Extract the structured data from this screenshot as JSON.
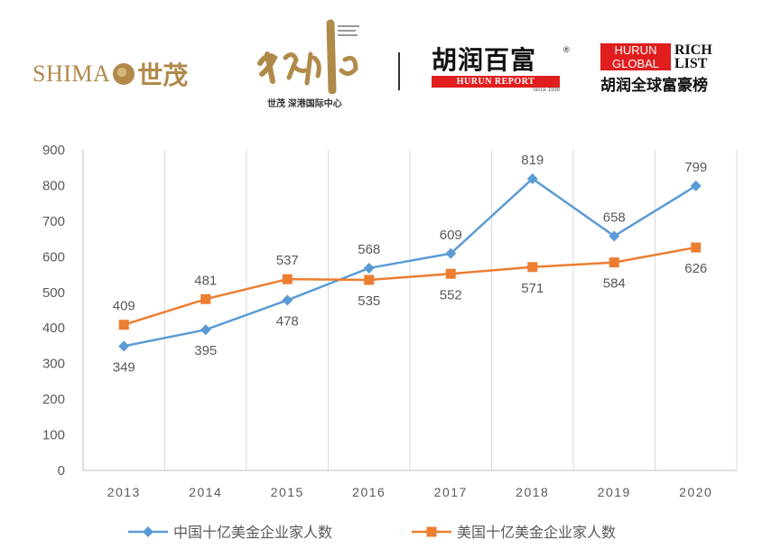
{
  "logos": {
    "shimao_en": "SHIMA",
    "shimao_zh": "世茂",
    "sz_caption": "世茂 深港国际中心",
    "hurun_report_zh": "胡润百富",
    "hurun_report_en": "HURUN REPORT",
    "hurun_report_since": "Since 1999",
    "hurun_global_line1": "HURUN",
    "hurun_global_line2": "GLOBAL",
    "hurun_rich": "RICH",
    "hurun_list": "LIST",
    "hurun_global_zh": "胡润全球富豪榜"
  },
  "colors": {
    "china": "#5b9bd5",
    "usa": "#ed7d31",
    "grid": "#d9d9d9",
    "axis": "#bfbfbf",
    "brand_gold": "#b08a4a",
    "brand_red": "#e01e1e"
  },
  "chart_data": {
    "type": "line",
    "title": "",
    "xlabel": "",
    "ylabel": "",
    "categories": [
      "2013",
      "2014",
      "2015",
      "2016",
      "2017",
      "2018",
      "2019",
      "2020"
    ],
    "series": [
      {
        "name": "中国十亿美金企业家人数",
        "values": [
          349,
          395,
          478,
          568,
          609,
          819,
          658,
          799
        ],
        "marker": "diamond",
        "label_pos": [
          "below",
          "below",
          "below",
          "above",
          "above",
          "above",
          "above",
          "above"
        ]
      },
      {
        "name": "美国十亿美金企业家人数",
        "values": [
          409,
          481,
          537,
          535,
          552,
          571,
          584,
          626
        ],
        "marker": "square",
        "label_pos": [
          "above",
          "above",
          "above",
          "below",
          "below",
          "below",
          "below",
          "below"
        ]
      }
    ],
    "yticks": [
      0,
      100,
      200,
      300,
      400,
      500,
      600,
      700,
      800,
      900
    ],
    "ylim": [
      0,
      900
    ],
    "grid": "vertical",
    "legend": "bottom"
  }
}
